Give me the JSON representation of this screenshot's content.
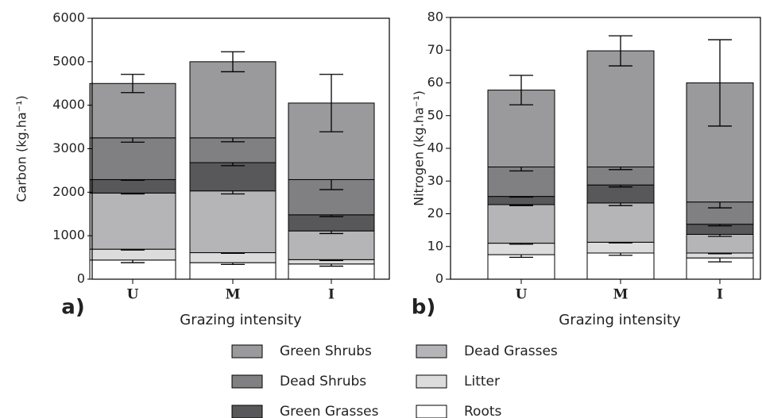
{
  "chart_data": [
    {
      "type": "bar",
      "stacked": true,
      "panel_label": "a)",
      "xlabel": "Grazing intensity",
      "ylabel": "Carbon (kg.ha⁻¹)",
      "categories": [
        "U",
        "M",
        "I"
      ],
      "ylim": [
        0,
        6000
      ],
      "yticks": [
        0,
        1000,
        2000,
        3000,
        4000,
        5000,
        6000
      ],
      "series": [
        {
          "name": "Green Shrubs",
          "color": "#9a9a9c",
          "values": [
            1250,
            1750,
            1760
          ],
          "errors": [
            210,
            230,
            660
          ]
        },
        {
          "name": "Dead Shrubs",
          "color": "#808083",
          "values": [
            960,
            570,
            810
          ],
          "errors": [
            100,
            90,
            230
          ]
        },
        {
          "name": "Green Grasses",
          "color": "#58585a",
          "values": [
            310,
            650,
            370
          ],
          "errors": [
            15,
            70,
            40
          ]
        },
        {
          "name": "Dead Grasses",
          "color": "#b5b5b7",
          "values": [
            1290,
            1420,
            660
          ],
          "errors": [
            20,
            70,
            60
          ]
        },
        {
          "name": "Litter",
          "color": "#dcdcdd",
          "values": [
            250,
            230,
            100
          ],
          "errors": [
            20,
            15,
            20
          ]
        },
        {
          "name": "Roots",
          "color": "#ffffff",
          "values": [
            440,
            380,
            350
          ],
          "errors": [
            60,
            40,
            50
          ]
        }
      ]
    },
    {
      "type": "bar",
      "stacked": true,
      "panel_label": "b)",
      "xlabel": "Grazing intensity",
      "ylabel": "Nitrogen (kg.ha⁻¹)",
      "categories": [
        "U",
        "M",
        "I"
      ],
      "ylim": [
        0,
        80
      ],
      "yticks": [
        0,
        10,
        20,
        30,
        40,
        50,
        60,
        70,
        80
      ],
      "series": [
        {
          "color": "#9a9a9c",
          "values": [
            23.5,
            35.5,
            36.4
          ],
          "errors": [
            4.5,
            4.6,
            13.2
          ]
        },
        {
          "color": "#808083",
          "values": [
            9,
            5.5,
            6.8
          ],
          "errors": [
            1.2,
            0.8,
            1.8
          ]
        },
        {
          "color": "#58585a",
          "values": [
            2.5,
            5.5,
            3.1
          ],
          "errors": [
            0.2,
            0.6,
            0.5
          ]
        },
        {
          "color": "#b5b5b7",
          "values": [
            11.8,
            12,
            5.7
          ],
          "errors": [
            0.3,
            0.8,
            0.6
          ]
        },
        {
          "color": "#dcdcdd",
          "values": [
            3.5,
            3.3,
            1.5
          ],
          "errors": [
            0.3,
            0.2,
            0.2
          ]
        },
        {
          "color": "#ffffff",
          "values": [
            7.5,
            8,
            6.5
          ],
          "errors": [
            0.8,
            0.7,
            1.2
          ]
        }
      ]
    }
  ]
}
